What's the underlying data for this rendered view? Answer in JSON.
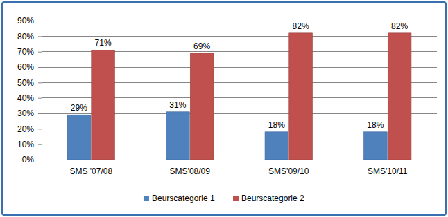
{
  "chart_data": {
    "type": "bar",
    "categories": [
      "SMS '07/08",
      "SMS'08/09",
      "SMS'09/10",
      "SMS'10/11"
    ],
    "series": [
      {
        "name": "Beurscategorie 1",
        "color": "#4f81bd",
        "values": [
          29,
          31,
          18,
          18
        ],
        "value_labels": [
          "29%",
          "31%",
          "18%",
          "18%"
        ]
      },
      {
        "name": "Beurscategorie 2",
        "color": "#c0504d",
        "values": [
          71,
          69,
          82,
          82
        ],
        "value_labels": [
          "71%",
          "69%",
          "82%",
          "82%"
        ]
      }
    ],
    "ylim": [
      0,
      90
    ],
    "yticks": [
      {
        "value": 0,
        "label": "0%"
      },
      {
        "value": 10,
        "label": "10%"
      },
      {
        "value": 20,
        "label": "20%"
      },
      {
        "value": 30,
        "label": "30%"
      },
      {
        "value": 40,
        "label": "40%"
      },
      {
        "value": 50,
        "label": "50%"
      },
      {
        "value": 60,
        "label": "60%"
      },
      {
        "value": 70,
        "label": "70%"
      },
      {
        "value": 80,
        "label": "80%"
      },
      {
        "value": 90,
        "label": "90%"
      }
    ],
    "grid": true,
    "legend": "bottom",
    "data_labels": true
  }
}
